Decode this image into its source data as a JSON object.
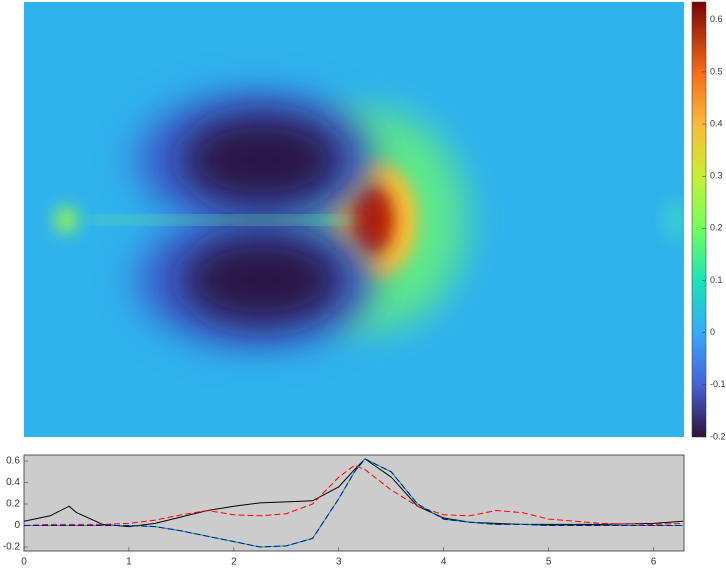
{
  "chart_data": [
    {
      "type": "heatmap",
      "colorbar": true,
      "clim": [
        -0.2,
        0.634
      ],
      "cticks": [
        -0.2,
        -0.1,
        0,
        0.1,
        0.2,
        0.3,
        0.4,
        0.5,
        0.6
      ]
    },
    {
      "type": "line",
      "x": [
        0,
        0.25,
        0.43,
        0.5,
        0.75,
        1,
        1.25,
        1.5,
        1.75,
        2,
        2.25,
        2.5,
        2.75,
        3,
        3.15,
        3.25,
        3.5,
        3.75,
        4,
        4.25,
        4.5,
        4.75,
        5,
        5.5,
        6,
        6.28
      ],
      "series": [
        {
          "color": "#000000",
          "dash": false,
          "values": [
            0.04,
            0.09,
            0.18,
            0.12,
            0.01,
            -0.01,
            0.02,
            0.08,
            0.14,
            0.18,
            0.21,
            0.22,
            0.23,
            0.36,
            0.52,
            0.62,
            0.45,
            0.18,
            0.07,
            0.03,
            0.02,
            0.01,
            0.01,
            0.01,
            0.02,
            0.04
          ]
        },
        {
          "color": "#ff0000",
          "dash": true,
          "values": [
            0,
            0.01,
            0.01,
            0.01,
            0.01,
            0.02,
            0.05,
            0.1,
            0.14,
            0.1,
            0.09,
            0.11,
            0.2,
            0.45,
            0.56,
            0.52,
            0.33,
            0.18,
            0.1,
            0.09,
            0.14,
            0.12,
            0.06,
            0.02,
            0.01,
            0.02
          ]
        },
        {
          "color": "#00c000",
          "dash": false,
          "values": [
            0,
            0,
            0,
            0,
            0,
            0,
            -0.01,
            -0.05,
            -0.1,
            -0.15,
            -0.2,
            -0.19,
            -0.12,
            0.25,
            0.5,
            0.62,
            0.5,
            0.2,
            0.06,
            0.03,
            0.01,
            0.01,
            0,
            0,
            0,
            0
          ]
        },
        {
          "color": "#0000ff",
          "dash": true,
          "values": [
            0,
            0,
            0,
            0,
            0,
            0,
            -0.01,
            -0.05,
            -0.1,
            -0.15,
            -0.2,
            -0.19,
            -0.12,
            0.25,
            0.5,
            0.62,
            0.5,
            0.2,
            0.06,
            0.03,
            0.01,
            0.01,
            0,
            0,
            0,
            0
          ]
        }
      ],
      "xlim": [
        0,
        6.29
      ],
      "ylim": [
        -0.237,
        0.656
      ],
      "xticks": [
        0,
        1,
        2,
        3,
        4,
        5,
        6
      ],
      "yticks": [
        -0.2,
        0,
        0.2,
        0.4,
        0.6
      ],
      "background": "#cccccc"
    }
  ]
}
